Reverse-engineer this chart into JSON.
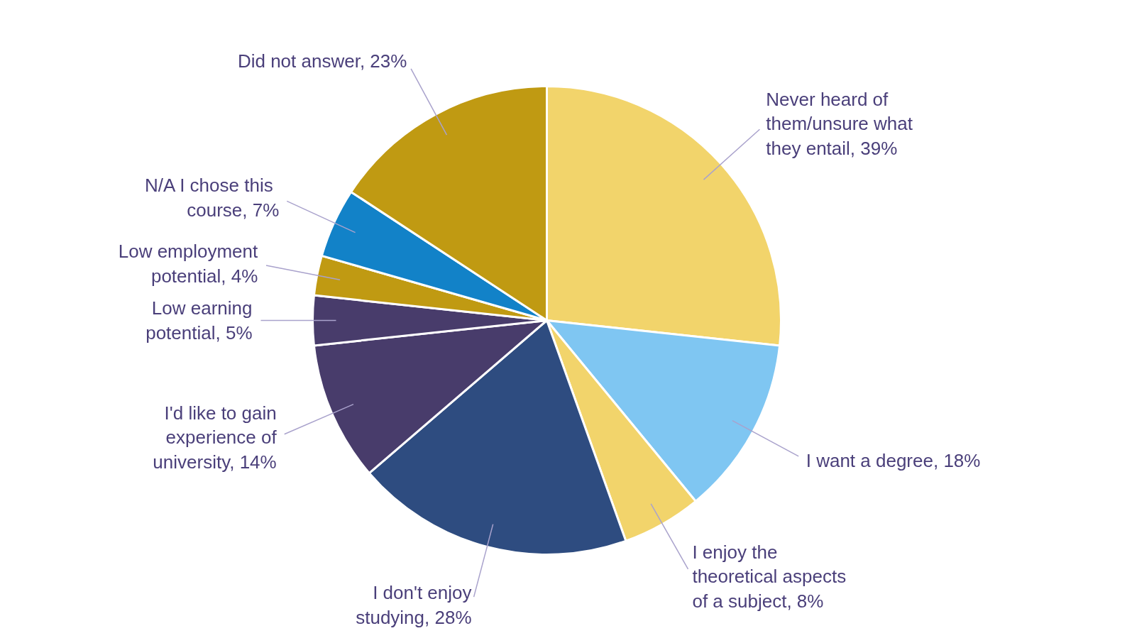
{
  "chart_data": {
    "type": "pie",
    "categories": [
      "Never heard of them/unsure what they entail",
      "I want a degree",
      "I enjoy the theoretical aspects of a subject",
      "I don't enjoy studying",
      "I'd like to gain experience of university",
      "Low earning potential",
      "Low employment potential",
      "N/A  I chose this course",
      "Did not answer"
    ],
    "values": [
      39,
      18,
      8,
      28,
      14,
      5,
      4,
      7,
      23
    ],
    "value_labels": [
      "39%",
      "18%",
      "8%",
      "28%",
      "14%",
      "5%",
      "4%",
      "7%",
      "23%"
    ],
    "colors": [
      "#f2d46b",
      "#7fc6f2",
      "#f2d46b",
      "#2e4c80",
      "#483c6b",
      "#483c6b",
      "#c09a12",
      "#1282c8",
      "#c09a12"
    ]
  }
}
